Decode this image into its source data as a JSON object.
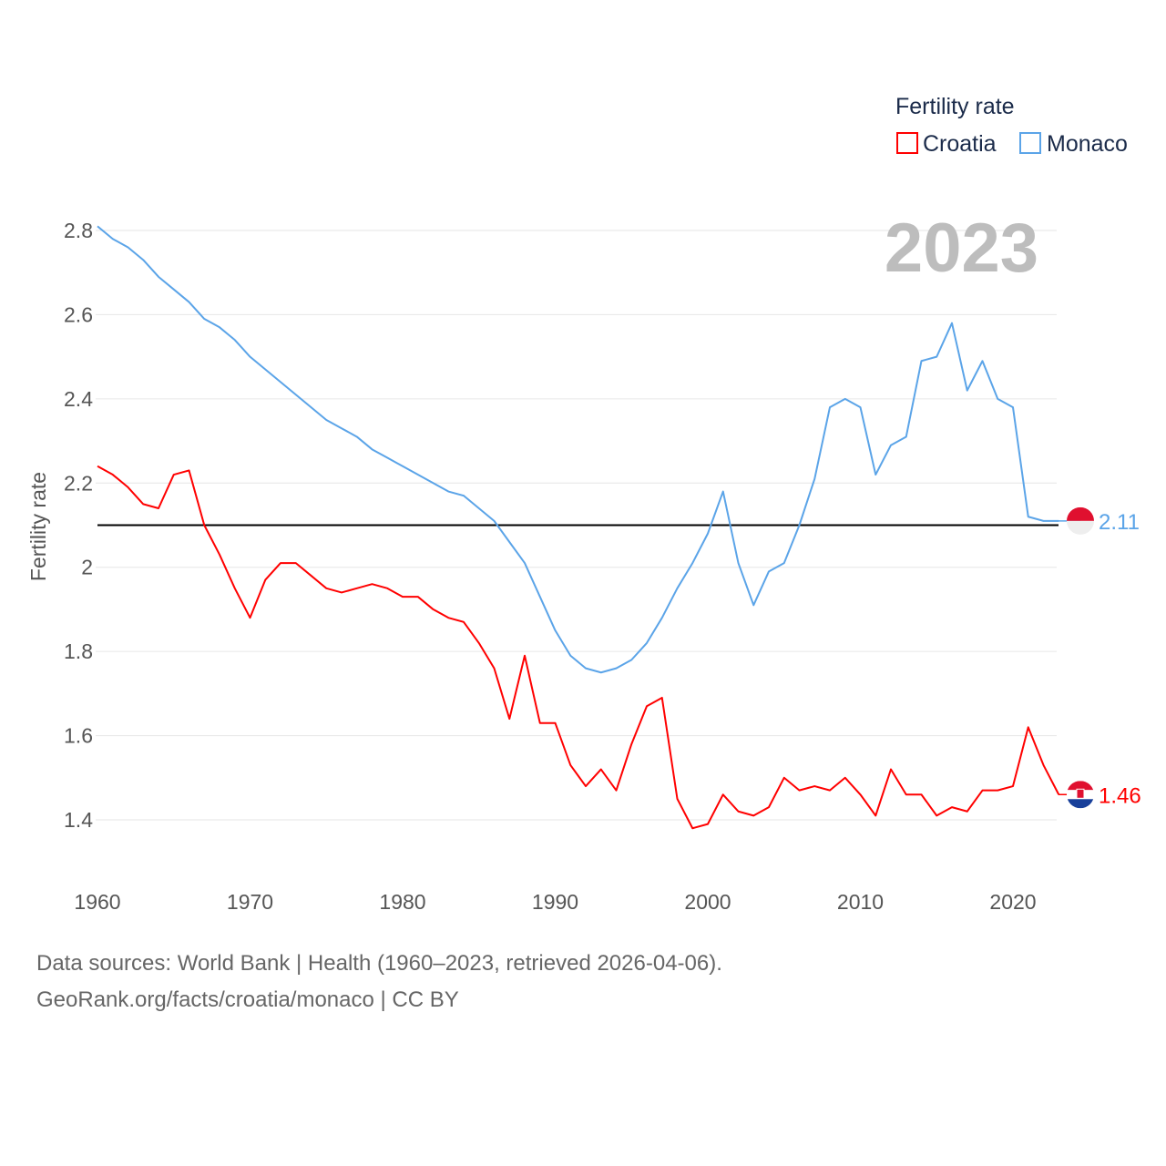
{
  "chart_data": {
    "type": "line",
    "title": "Fertility rate",
    "current_year_label": "2023",
    "ylabel": "Fertility rate",
    "xlabel": "",
    "ylim": [
      1.4,
      2.8
    ],
    "xlim": [
      1960,
      2023
    ],
    "grid": true,
    "legend_placement": "top-right",
    "y_ticks": [
      "2.8",
      "2.6",
      "2.4",
      "2.2",
      "2",
      "1.8",
      "1.6",
      "1.4"
    ],
    "y_tick_values": [
      2.8,
      2.6,
      2.4,
      2.2,
      2.0,
      1.8,
      1.6,
      1.4
    ],
    "x_ticks": [
      "1960",
      "1970",
      "1980",
      "1990",
      "2000",
      "2010",
      "2020"
    ],
    "x_tick_values": [
      1960,
      1970,
      1980,
      1990,
      2000,
      2010,
      2020
    ],
    "reference_line": 2.1,
    "x": [
      1960,
      1961,
      1962,
      1963,
      1964,
      1965,
      1966,
      1967,
      1968,
      1969,
      1970,
      1971,
      1972,
      1973,
      1974,
      1975,
      1976,
      1977,
      1978,
      1979,
      1980,
      1981,
      1982,
      1983,
      1984,
      1985,
      1986,
      1987,
      1988,
      1989,
      1990,
      1991,
      1992,
      1993,
      1994,
      1995,
      1996,
      1997,
      1998,
      1999,
      2000,
      2001,
      2002,
      2003,
      2004,
      2005,
      2006,
      2007,
      2008,
      2009,
      2010,
      2011,
      2012,
      2013,
      2014,
      2015,
      2016,
      2017,
      2018,
      2019,
      2020,
      2021,
      2022,
      2023
    ],
    "series": [
      {
        "name": "Croatia",
        "color": "#ff0000",
        "end_label": "1.46",
        "values": [
          2.24,
          2.22,
          2.19,
          2.15,
          2.14,
          2.22,
          2.23,
          2.1,
          2.03,
          1.95,
          1.88,
          1.97,
          2.01,
          2.01,
          1.98,
          1.95,
          1.94,
          1.95,
          1.96,
          1.95,
          1.93,
          1.93,
          1.9,
          1.88,
          1.87,
          1.82,
          1.76,
          1.64,
          1.79,
          1.63,
          1.63,
          1.53,
          1.48,
          1.52,
          1.47,
          1.58,
          1.67,
          1.69,
          1.45,
          1.38,
          1.39,
          1.46,
          1.42,
          1.41,
          1.43,
          1.5,
          1.47,
          1.48,
          1.47,
          1.5,
          1.46,
          1.41,
          1.52,
          1.46,
          1.46,
          1.41,
          1.43,
          1.42,
          1.47,
          1.47,
          1.48,
          1.62,
          1.53,
          1.46
        ]
      },
      {
        "name": "Monaco",
        "color": "#5ba4e8",
        "end_label": "2.11",
        "values": [
          2.81,
          2.78,
          2.76,
          2.73,
          2.69,
          2.66,
          2.63,
          2.59,
          2.57,
          2.54,
          2.5,
          2.47,
          2.44,
          2.41,
          2.38,
          2.35,
          2.33,
          2.31,
          2.28,
          2.26,
          2.24,
          2.22,
          2.2,
          2.18,
          2.17,
          2.14,
          2.11,
          2.06,
          2.01,
          1.93,
          1.85,
          1.79,
          1.76,
          1.75,
          1.76,
          1.78,
          1.82,
          1.88,
          1.95,
          2.01,
          2.08,
          2.18,
          2.01,
          1.91,
          1.99,
          2.01,
          2.1,
          2.21,
          2.38,
          2.4,
          2.38,
          2.22,
          2.29,
          2.31,
          2.49,
          2.5,
          2.58,
          2.42,
          2.49,
          2.4,
          2.38,
          2.12,
          2.11,
          2.11
        ]
      }
    ]
  },
  "footer": {
    "line1": "Data sources: World Bank | Health (1960–2023, retrieved 2026-04-06).",
    "line2": "GeoRank.org/facts/croatia/monaco | CC BY"
  }
}
